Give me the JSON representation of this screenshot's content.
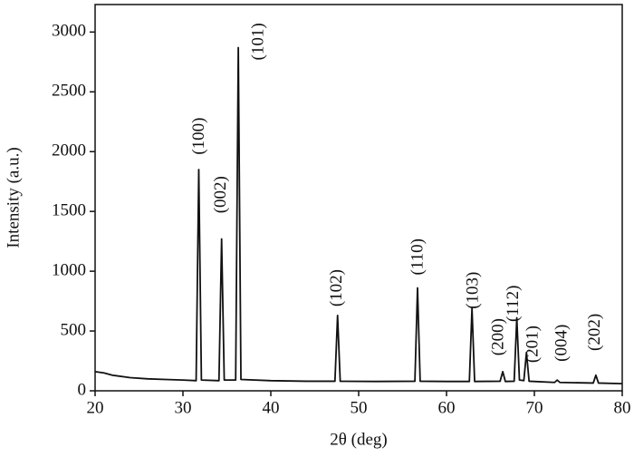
{
  "chart_data": {
    "type": "line",
    "xlabel": "2θ (deg)",
    "ylabel": "Intensity (a.u.)",
    "x": [
      20,
      21,
      22,
      24,
      26,
      28,
      30,
      31.5,
      31.8,
      32.1,
      34.1,
      34.4,
      34.7,
      36.0,
      36.3,
      36.6,
      40,
      44,
      47.3,
      47.6,
      47.9,
      52,
      56.4,
      56.7,
      57.0,
      60,
      62.6,
      62.9,
      63.2,
      66.1,
      66.4,
      66.7,
      67.7,
      68.0,
      68.3,
      68.8,
      69.1,
      69.4,
      72.3,
      72.6,
      72.9,
      76.7,
      77.0,
      77.3,
      80
    ],
    "series": [
      {
        "color": "#111111",
        "values": [
          160,
          150,
          130,
          110,
          100,
          95,
          90,
          85,
          1850,
          90,
          85,
          1270,
          90,
          90,
          2870,
          95,
          85,
          80,
          80,
          630,
          80,
          78,
          80,
          860,
          80,
          78,
          78,
          690,
          78,
          80,
          160,
          78,
          80,
          610,
          90,
          85,
          320,
          80,
          70,
          90,
          70,
          65,
          130,
          65,
          60
        ]
      }
    ],
    "xlim": [
      20,
      80
    ],
    "xticks": [
      20,
      30,
      40,
      50,
      60,
      70,
      80
    ],
    "ylim": [
      0,
      3230
    ],
    "yticks": [
      0,
      500,
      1000,
      1500,
      2000,
      2500,
      3000
    ],
    "annotations": [
      {
        "text": "(100)",
        "x": 31.9,
        "y": 2130
      },
      {
        "text": "(002)",
        "x": 34.4,
        "y": 1640
      },
      {
        "text": "(101)",
        "x": 38.7,
        "y": 2920
      },
      {
        "text": "(102)",
        "x": 47.6,
        "y": 860
      },
      {
        "text": "(110)",
        "x": 56.8,
        "y": 1120
      },
      {
        "text": "(103)",
        "x": 63.1,
        "y": 840
      },
      {
        "text": "(200)",
        "x": 66.0,
        "y": 450
      },
      {
        "text": "(112)",
        "x": 67.7,
        "y": 730
      },
      {
        "text": "(201)",
        "x": 69.9,
        "y": 390
      },
      {
        "text": "(004)",
        "x": 73.2,
        "y": 400
      },
      {
        "text": "(202)",
        "x": 77.0,
        "y": 490
      }
    ]
  }
}
